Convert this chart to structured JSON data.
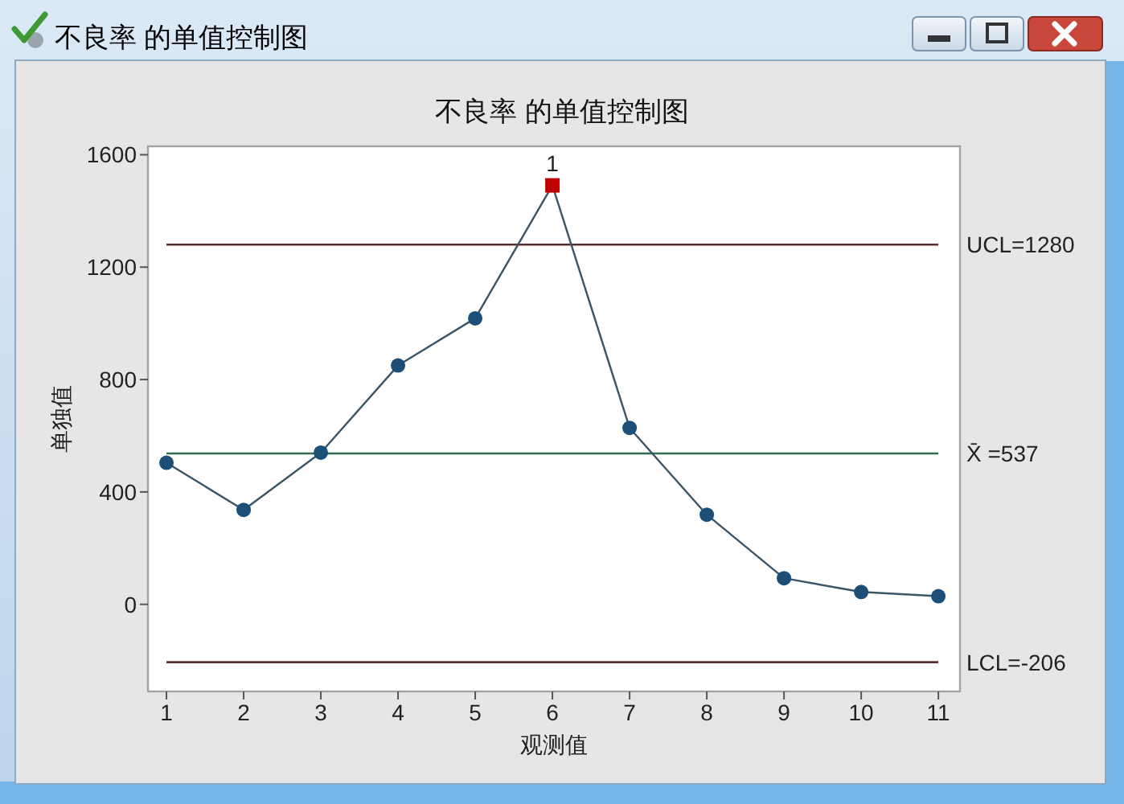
{
  "chart_data": {
    "type": "line",
    "title": "不良率 的单值控制图",
    "xlabel": "观测值",
    "ylabel": "单独值",
    "x": [
      1,
      2,
      3,
      4,
      5,
      6,
      7,
      8,
      9,
      10,
      11
    ],
    "xlim": [
      0.76,
      11.28
    ],
    "xticks": [
      1,
      2,
      3,
      4,
      5,
      6,
      7,
      8,
      9,
      10,
      11
    ],
    "ylim": [
      -310,
      1630
    ],
    "yticks": [
      0,
      400,
      800,
      1200,
      1600
    ],
    "series": [
      {
        "color": "#3b5566",
        "marker": "none",
        "values": [
          504,
          336,
          540,
          850,
          1018,
          1491,
          628,
          319,
          93,
          44,
          29
        ]
      },
      {
        "type": "scatter",
        "color": "#1b4f78",
        "marker": "circle",
        "values": [
          504,
          336,
          540,
          850,
          1018,
          null,
          628,
          319,
          93,
          44,
          29
        ]
      },
      {
        "type": "scatter",
        "color": "#c00000",
        "marker": "square",
        "values": [
          null,
          null,
          null,
          null,
          null,
          1491,
          null,
          null,
          null,
          null,
          null
        ]
      }
    ],
    "ref_lines": [
      {
        "axis": "y",
        "value": 1280,
        "label": "UCL=1280",
        "color": "#5a2e2e"
      },
      {
        "axis": "y",
        "value": 537,
        "label": "X̄ =537",
        "color": "#2e6b4f"
      },
      {
        "axis": "y",
        "value": -206,
        "label": "LCL=-206",
        "color": "#5a2e2e"
      }
    ],
    "annotations": [
      "不良率 的单值控制图",
      {
        "text": "1",
        "x": 6,
        "y": 1491
      }
    ],
    "grid": false
  }
}
